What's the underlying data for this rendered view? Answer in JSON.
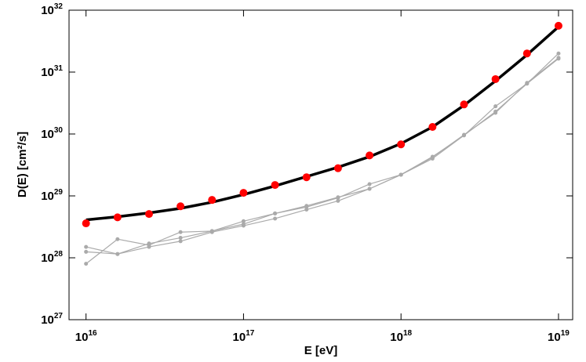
{
  "chart_data": {
    "type": "line",
    "x_label": "E [eV]",
    "y_label": "D(E) [cm²/s]",
    "x_scale": "log",
    "y_scale": "log",
    "xlim": [
      7800000000000000.0,
      1.23e+19
    ],
    "ylim": [
      1e+27,
      1e+32
    ],
    "xticks": [
      {
        "value": 1e+16,
        "label": "10",
        "sup": "16"
      },
      {
        "value": 1e+17,
        "label": "10",
        "sup": "17"
      },
      {
        "value": 1e+18,
        "label": "10",
        "sup": "18"
      },
      {
        "value": 1e+19,
        "label": "10",
        "sup": "19"
      }
    ],
    "yticks": [
      {
        "value": 1e+27,
        "label": "10",
        "sup": "27"
      },
      {
        "value": 1e+28,
        "label": "10",
        "sup": "28"
      },
      {
        "value": 1e+29,
        "label": "10",
        "sup": "29"
      },
      {
        "value": 1e+30,
        "label": "10",
        "sup": "30"
      },
      {
        "value": 1e+31,
        "label": "10",
        "sup": "31"
      },
      {
        "value": 1e+32,
        "label": "10",
        "sup": "32"
      }
    ],
    "x": [
      1e+16,
      1.585e+16,
      2.512e+16,
      3.981e+16,
      6.31e+16,
      1e+17,
      1.585e+17,
      2.512e+17,
      3.981e+17,
      6.31e+17,
      1e+18,
      1.585e+18,
      2.512e+18,
      3.981e+18,
      6.31e+18,
      1e+19
    ],
    "series": [
      {
        "color": "#aaaaaa",
        "style": "lines+markers",
        "line_width": 1.2,
        "marker_size": 2.5,
        "values": [
          1.5e+28,
          1.15e+28,
          1.7e+28,
          2.1e+28,
          2.7e+28,
          3.5e+28,
          5.2e+28,
          6.6e+28,
          9.3e+28,
          1.55e+29,
          2.2e+29,
          4.3e+29,
          9.5e+29,
          2.8e+30,
          6.5e+30,
          2e+31
        ]
      },
      {
        "color": "#aaaaaa",
        "style": "lines+markers",
        "line_width": 1.2,
        "marker_size": 2.5,
        "values": [
          1.25e+28,
          1.15e+28,
          1.5e+28,
          1.85e+28,
          2.6e+28,
          3.3e+28,
          4.3e+28,
          6e+28,
          8.3e+28,
          1.3e+29,
          2.2e+29,
          4e+29,
          9.5e+29,
          2.3e+30,
          6.5e+30,
          1.65e+31
        ]
      },
      {
        "color": "#aaaaaa",
        "style": "lines+markers",
        "line_width": 1.2,
        "marker_size": 2.5,
        "values": [
          8e+27,
          2e+28,
          1.6e+28,
          2.6e+28,
          2.7e+28,
          3.9e+28,
          5.2e+28,
          6.9e+28,
          9.5e+28,
          1.3e+29,
          2.2e+29,
          4.2e+29,
          9.7e+29,
          2.2e+30,
          6.7e+30,
          1.7e+31
        ]
      },
      {
        "color": "#000000",
        "style": "lines",
        "line_width": 3.5,
        "values": [
          4.1e+28,
          4.6e+28,
          5.3e+28,
          6.3e+28,
          7.9e+28,
          1.05e+29,
          1.45e+29,
          2.05e+29,
          2.9e+29,
          4.3e+29,
          7e+29,
          1.3e+30,
          2.9e+30,
          7.2e+30,
          1.9e+31,
          5.4e+31
        ]
      },
      {
        "color": "#ff0000",
        "style": "markers",
        "marker_size": 5,
        "values": [
          3.6e+28,
          4.5e+28,
          5.1e+28,
          6.8e+28,
          8.6e+28,
          1.12e+29,
          1.5e+29,
          2e+29,
          2.8e+29,
          4.5e+29,
          6.8e+29,
          1.3e+30,
          3e+30,
          7.7e+30,
          2e+31,
          5.6e+31
        ]
      }
    ]
  }
}
